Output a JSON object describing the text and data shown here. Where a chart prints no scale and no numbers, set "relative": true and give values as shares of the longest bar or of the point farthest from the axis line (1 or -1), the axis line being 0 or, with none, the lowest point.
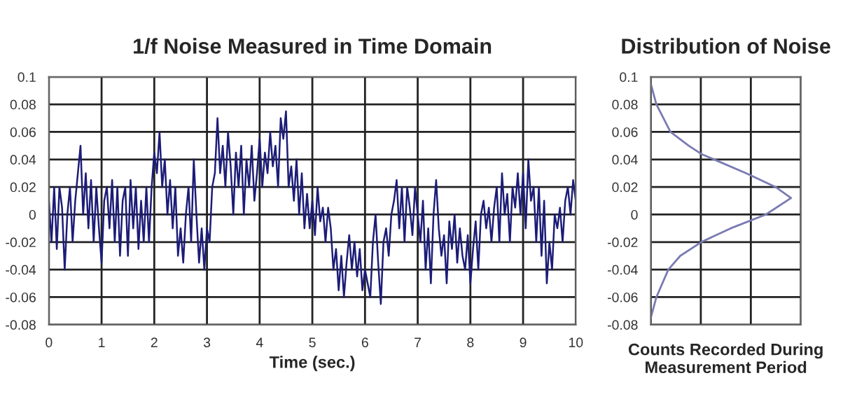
{
  "chart_data": [
    {
      "type": "line",
      "title": "1/f Noise Measured in Time Domain",
      "xlabel": "Time (sec.)",
      "xlim": [
        0,
        10
      ],
      "xticks": [
        0,
        1,
        2,
        3,
        4,
        5,
        6,
        7,
        8,
        9,
        10
      ],
      "ylim": [
        -0.08,
        0.1
      ],
      "yticks": [
        -0.08,
        -0.06,
        -0.04,
        -0.02,
        0,
        0.02,
        0.04,
        0.06,
        0.08,
        0.1
      ],
      "grid": true,
      "marker": "none",
      "line_style": "solid",
      "x": [
        0,
        0.05,
        0.1,
        0.15,
        0.2,
        0.25,
        0.3,
        0.35,
        0.4,
        0.45,
        0.5,
        0.55,
        0.6,
        0.65,
        0.7,
        0.75,
        0.8,
        0.85,
        0.9,
        0.95,
        1,
        1.05,
        1.1,
        1.15,
        1.2,
        1.25,
        1.3,
        1.35,
        1.4,
        1.45,
        1.5,
        1.55,
        1.6,
        1.65,
        1.7,
        1.75,
        1.8,
        1.85,
        1.9,
        1.95,
        2,
        2.05,
        2.1,
        2.15,
        2.2,
        2.25,
        2.3,
        2.35,
        2.4,
        2.45,
        2.5,
        2.55,
        2.6,
        2.65,
        2.7,
        2.75,
        2.8,
        2.85,
        2.9,
        2.95,
        3,
        3.05,
        3.1,
        3.15,
        3.2,
        3.25,
        3.3,
        3.35,
        3.4,
        3.45,
        3.5,
        3.55,
        3.6,
        3.65,
        3.7,
        3.75,
        3.8,
        3.85,
        3.9,
        3.95,
        4,
        4.05,
        4.1,
        4.15,
        4.2,
        4.25,
        4.3,
        4.35,
        4.4,
        4.45,
        4.5,
        4.55,
        4.6,
        4.65,
        4.7,
        4.75,
        4.8,
        4.85,
        4.9,
        4.95,
        5,
        5.05,
        5.1,
        5.15,
        5.2,
        5.25,
        5.3,
        5.35,
        5.4,
        5.45,
        5.5,
        5.55,
        5.6,
        5.65,
        5.7,
        5.75,
        5.8,
        5.85,
        5.9,
        5.95,
        6,
        6.05,
        6.1,
        6.15,
        6.2,
        6.25,
        6.3,
        6.35,
        6.4,
        6.45,
        6.5,
        6.55,
        6.6,
        6.65,
        6.7,
        6.75,
        6.8,
        6.85,
        6.9,
        6.95,
        7,
        7.05,
        7.1,
        7.15,
        7.2,
        7.25,
        7.3,
        7.35,
        7.4,
        7.45,
        7.5,
        7.55,
        7.6,
        7.65,
        7.7,
        7.75,
        7.8,
        7.85,
        7.9,
        7.95,
        8,
        8.05,
        8.1,
        8.15,
        8.2,
        8.25,
        8.3,
        8.35,
        8.4,
        8.45,
        8.5,
        8.55,
        8.6,
        8.65,
        8.7,
        8.75,
        8.8,
        8.85,
        8.9,
        8.95,
        9,
        9.05,
        9.1,
        9.15,
        9.2,
        9.25,
        9.3,
        9.35,
        9.4,
        9.45,
        9.5,
        9.55,
        9.6,
        9.65,
        9.7,
        9.75,
        9.8,
        9.85,
        9.9,
        9.95,
        10
      ],
      "series": [
        {
          "color": "#1c1c78",
          "values": [
            0.01,
            -0.02,
            0.02,
            -0.025,
            0.02,
            0.005,
            -0.04,
            0.0,
            0.02,
            -0.02,
            0.01,
            0.03,
            0.05,
            0.0,
            0.03,
            -0.01,
            0.025,
            -0.02,
            0.02,
            -0.01,
            -0.035,
            0.01,
            0.02,
            -0.01,
            0.025,
            -0.02,
            0.02,
            -0.03,
            0.01,
            0.02,
            -0.03,
            0.025,
            -0.01,
            0.02,
            -0.025,
            0.01,
            -0.02,
            0.02,
            -0.02,
            0.02,
            0.045,
            0.03,
            0.06,
            0.02,
            0.04,
            0.0,
            0.025,
            -0.01,
            0.02,
            -0.03,
            -0.01,
            -0.035,
            0.0,
            0.02,
            -0.02,
            0.04,
            0.0,
            -0.035,
            -0.01,
            -0.04,
            -0.01,
            -0.02,
            0.02,
            0.03,
            0.07,
            0.03,
            0.05,
            0.02,
            0.06,
            0.035,
            0.0,
            0.045,
            0.02,
            0.05,
            0.0,
            0.04,
            0.02,
            0.05,
            0.01,
            0.03,
            0.055,
            0.02,
            0.045,
            0.03,
            0.06,
            0.035,
            0.05,
            0.02,
            0.07,
            0.055,
            0.075,
            0.02,
            0.035,
            0.01,
            0.04,
            0.0,
            0.03,
            -0.01,
            0.015,
            -0.01,
            0.01,
            -0.015,
            0.02,
            -0.005,
            0.005,
            -0.02,
            0.005,
            -0.01,
            -0.04,
            -0.025,
            -0.055,
            -0.03,
            -0.06,
            -0.035,
            -0.015,
            -0.04,
            -0.02,
            -0.045,
            -0.025,
            -0.055,
            -0.04,
            -0.05,
            -0.06,
            -0.02,
            0.0,
            -0.035,
            -0.065,
            -0.02,
            -0.01,
            -0.03,
            0.0,
            0.01,
            0.025,
            -0.01,
            0.02,
            -0.02,
            0.02,
            0.005,
            -0.015,
            0.02,
            0.0,
            -0.02,
            0.01,
            -0.04,
            -0.01,
            -0.05,
            0.0,
            0.025,
            -0.01,
            -0.03,
            -0.015,
            -0.05,
            -0.005,
            -0.025,
            0.0,
            -0.035,
            -0.01,
            -0.03,
            -0.04,
            -0.015,
            -0.05,
            -0.025,
            -0.005,
            -0.04,
            0.0,
            0.01,
            -0.01,
            0.005,
            -0.02,
            0.005,
            0.02,
            -0.02,
            0.03,
            0.0,
            0.015,
            -0.02,
            0.02,
            0.005,
            0.03,
            0.0,
            0.03,
            -0.01,
            0.04,
            0.01,
            0.02,
            -0.02,
            0.02,
            -0.03,
            0.01,
            -0.05,
            -0.02,
            -0.04,
            0.0,
            -0.01,
            0.005,
            -0.02,
            0.01,
            0.02,
            0.0,
            0.025,
            0.01
          ]
        }
      ]
    },
    {
      "type": "line",
      "orientation": "horizontal",
      "relative": true,
      "title": "Distribution of Noise",
      "xlabel": "Counts Recorded During\nMeasurement Period",
      "ylim": [
        -0.08,
        0.1
      ],
      "yticks": [
        -0.08,
        -0.06,
        -0.04,
        -0.02,
        0,
        0.02,
        0.04,
        0.06,
        0.08,
        0.1
      ],
      "grid": true,
      "tick_labels": "y",
      "marker": "none",
      "line_style": "solid",
      "x": [
        0.095,
        0.08,
        0.06,
        0.05,
        0.044,
        0.03,
        0.02,
        0.012,
        0.0,
        -0.01,
        -0.02,
        -0.03,
        -0.04,
        -0.06,
        -0.075
      ],
      "series": [
        {
          "color": "#7a7ab4",
          "values": [
            0,
            0.04,
            0.14,
            0.27,
            0.36,
            0.68,
            0.89,
            1,
            0.82,
            0.57,
            0.36,
            0.21,
            0.125,
            0.04,
            0
          ]
        }
      ]
    }
  ]
}
